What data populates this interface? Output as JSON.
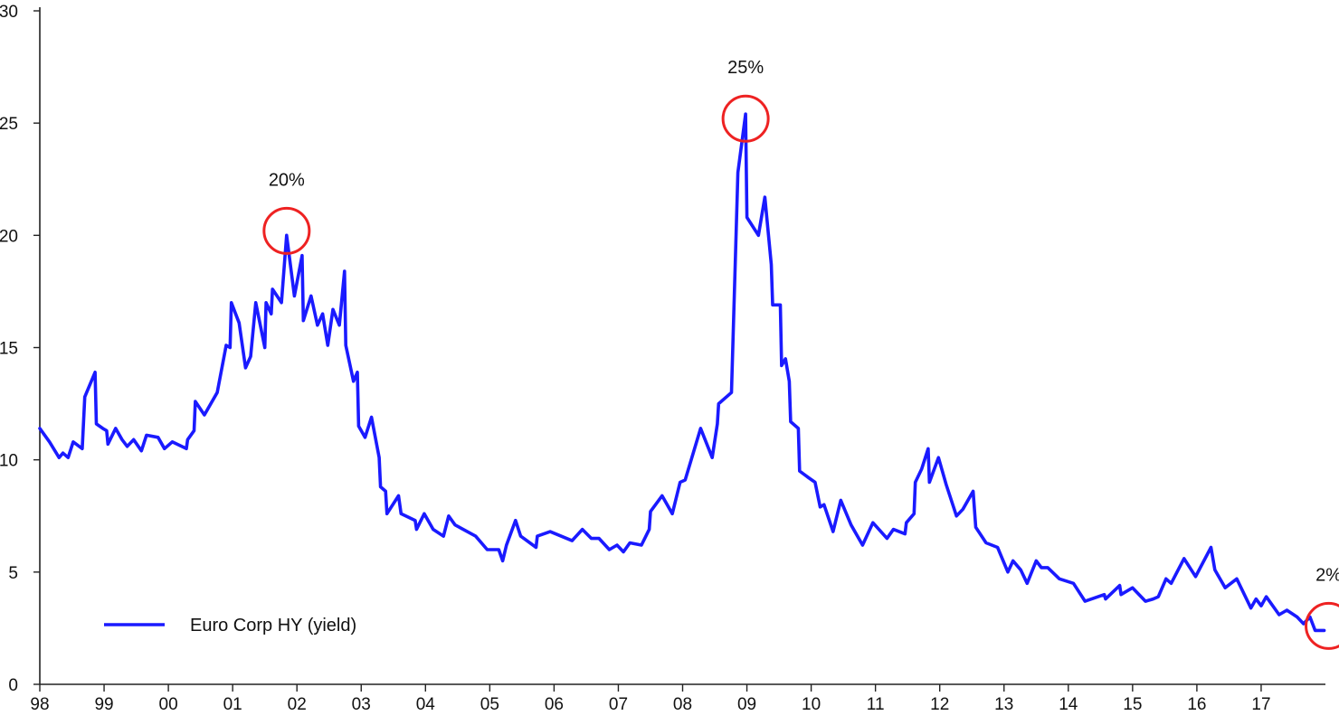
{
  "chart_data": {
    "type": "line",
    "title": "",
    "xlabel": "",
    "ylabel": "",
    "ylim": [
      0,
      30
    ],
    "y_ticks": [
      0,
      5,
      10,
      15,
      20,
      25,
      30
    ],
    "x_range": [
      1998,
      2018
    ],
    "x_ticks": [
      {
        "value": 1998,
        "label": "98"
      },
      {
        "value": 1999,
        "label": "99"
      },
      {
        "value": 2000,
        "label": "00"
      },
      {
        "value": 2001,
        "label": "01"
      },
      {
        "value": 2002,
        "label": "02"
      },
      {
        "value": 2003,
        "label": "03"
      },
      {
        "value": 2004,
        "label": "04"
      },
      {
        "value": 2005,
        "label": "05"
      },
      {
        "value": 2006,
        "label": "06"
      },
      {
        "value": 2007,
        "label": "07"
      },
      {
        "value": 2008,
        "label": "08"
      },
      {
        "value": 2009,
        "label": "09"
      },
      {
        "value": 2010,
        "label": "10"
      },
      {
        "value": 2011,
        "label": "11"
      },
      {
        "value": 2012,
        "label": "12"
      },
      {
        "value": 2013,
        "label": "13"
      },
      {
        "value": 2014,
        "label": "14"
      },
      {
        "value": 2015,
        "label": "15"
      },
      {
        "value": 2016,
        "label": "16"
      },
      {
        "value": 2017,
        "label": "17"
      }
    ],
    "grid": false,
    "legend_placement": "bottom-left",
    "series": [
      {
        "name": "Euro Corp HY (yield)",
        "color": "#1a1aff",
        "points": [
          [
            1998.0,
            11.4
          ],
          [
            1998.15,
            10.8
          ],
          [
            1998.3,
            10.1
          ],
          [
            1998.36,
            10.3
          ],
          [
            1998.44,
            10.1
          ],
          [
            1998.52,
            10.8
          ],
          [
            1998.66,
            10.5
          ],
          [
            1998.7,
            12.8
          ],
          [
            1998.86,
            13.9
          ],
          [
            1998.88,
            11.6
          ],
          [
            1998.98,
            11.4
          ],
          [
            1999.04,
            11.3
          ],
          [
            1999.06,
            10.7
          ],
          [
            1999.18,
            11.4
          ],
          [
            1999.28,
            10.9
          ],
          [
            1999.36,
            10.6
          ],
          [
            1999.46,
            10.9
          ],
          [
            1999.58,
            10.4
          ],
          [
            1999.66,
            11.1
          ],
          [
            1999.84,
            11.0
          ],
          [
            1999.94,
            10.5
          ],
          [
            2000.06,
            10.8
          ],
          [
            2000.28,
            10.5
          ],
          [
            2000.3,
            10.9
          ],
          [
            2000.4,
            11.3
          ],
          [
            2000.42,
            12.6
          ],
          [
            2000.56,
            12.0
          ],
          [
            2000.76,
            13.0
          ],
          [
            2000.9,
            15.1
          ],
          [
            2000.96,
            15.0
          ],
          [
            2000.98,
            17.0
          ],
          [
            2001.1,
            16.1
          ],
          [
            2001.2,
            14.1
          ],
          [
            2001.28,
            14.6
          ],
          [
            2001.36,
            17.0
          ],
          [
            2001.5,
            15.0
          ],
          [
            2001.52,
            17.0
          ],
          [
            2001.6,
            16.5
          ],
          [
            2001.62,
            17.6
          ],
          [
            2001.76,
            17.0
          ],
          [
            2001.84,
            20.0
          ],
          [
            2001.96,
            17.3
          ],
          [
            2002.08,
            19.1
          ],
          [
            2002.1,
            16.2
          ],
          [
            2002.22,
            17.3
          ],
          [
            2002.32,
            16.0
          ],
          [
            2002.4,
            16.5
          ],
          [
            2002.48,
            15.1
          ],
          [
            2002.56,
            16.7
          ],
          [
            2002.66,
            16.0
          ],
          [
            2002.74,
            18.4
          ],
          [
            2002.76,
            15.1
          ],
          [
            2002.88,
            13.5
          ],
          [
            2002.94,
            13.9
          ],
          [
            2002.96,
            11.5
          ],
          [
            2003.06,
            11.0
          ],
          [
            2003.16,
            11.9
          ],
          [
            2003.28,
            10.1
          ],
          [
            2003.3,
            8.8
          ],
          [
            2003.38,
            8.6
          ],
          [
            2003.4,
            7.6
          ],
          [
            2003.58,
            8.4
          ],
          [
            2003.62,
            7.6
          ],
          [
            2003.84,
            7.3
          ],
          [
            2003.86,
            6.9
          ],
          [
            2003.98,
            7.6
          ],
          [
            2004.12,
            6.9
          ],
          [
            2004.28,
            6.6
          ],
          [
            2004.36,
            7.5
          ],
          [
            2004.46,
            7.1
          ],
          [
            2004.78,
            6.6
          ],
          [
            2004.96,
            6.0
          ],
          [
            2005.14,
            6.0
          ],
          [
            2005.2,
            5.5
          ],
          [
            2005.26,
            6.2
          ],
          [
            2005.4,
            7.3
          ],
          [
            2005.48,
            6.6
          ],
          [
            2005.72,
            6.1
          ],
          [
            2005.74,
            6.6
          ],
          [
            2005.94,
            6.8
          ],
          [
            2006.28,
            6.4
          ],
          [
            2006.44,
            6.9
          ],
          [
            2006.58,
            6.5
          ],
          [
            2006.7,
            6.5
          ],
          [
            2006.86,
            6.0
          ],
          [
            2006.98,
            6.2
          ],
          [
            2007.08,
            5.9
          ],
          [
            2007.18,
            6.3
          ],
          [
            2007.36,
            6.2
          ],
          [
            2007.48,
            6.9
          ],
          [
            2007.5,
            7.7
          ],
          [
            2007.68,
            8.4
          ],
          [
            2007.84,
            7.6
          ],
          [
            2007.96,
            9.0
          ],
          [
            2008.04,
            9.1
          ],
          [
            2008.28,
            11.4
          ],
          [
            2008.46,
            10.1
          ],
          [
            2008.54,
            11.6
          ],
          [
            2008.56,
            12.5
          ],
          [
            2008.76,
            13.0
          ],
          [
            2008.86,
            22.8
          ],
          [
            2008.98,
            25.4
          ],
          [
            2009.0,
            20.8
          ],
          [
            2009.18,
            20.0
          ],
          [
            2009.28,
            21.7
          ],
          [
            2009.38,
            18.7
          ],
          [
            2009.4,
            16.9
          ],
          [
            2009.52,
            16.9
          ],
          [
            2009.54,
            14.2
          ],
          [
            2009.6,
            14.5
          ],
          [
            2009.66,
            13.5
          ],
          [
            2009.68,
            11.7
          ],
          [
            2009.8,
            11.4
          ],
          [
            2009.82,
            9.5
          ],
          [
            2009.96,
            9.2
          ],
          [
            2010.06,
            9.0
          ],
          [
            2010.14,
            7.9
          ],
          [
            2010.2,
            8.0
          ],
          [
            2010.34,
            6.8
          ],
          [
            2010.46,
            8.2
          ],
          [
            2010.62,
            7.1
          ],
          [
            2010.8,
            6.2
          ],
          [
            2010.96,
            7.2
          ],
          [
            2011.18,
            6.5
          ],
          [
            2011.28,
            6.9
          ],
          [
            2011.46,
            6.7
          ],
          [
            2011.48,
            7.2
          ],
          [
            2011.6,
            7.6
          ],
          [
            2011.62,
            9.0
          ],
          [
            2011.72,
            9.6
          ],
          [
            2011.82,
            10.5
          ],
          [
            2011.84,
            9.0
          ],
          [
            2011.98,
            10.1
          ],
          [
            2012.1,
            8.9
          ],
          [
            2012.26,
            7.5
          ],
          [
            2012.36,
            7.8
          ],
          [
            2012.52,
            8.6
          ],
          [
            2012.56,
            7.0
          ],
          [
            2012.72,
            6.3
          ],
          [
            2012.9,
            6.1
          ],
          [
            2013.06,
            5.0
          ],
          [
            2013.14,
            5.5
          ],
          [
            2013.26,
            5.1
          ],
          [
            2013.36,
            4.5
          ],
          [
            2013.5,
            5.5
          ],
          [
            2013.58,
            5.2
          ],
          [
            2013.68,
            5.2
          ],
          [
            2013.86,
            4.7
          ],
          [
            2014.08,
            4.5
          ],
          [
            2014.26,
            3.7
          ],
          [
            2014.56,
            4.0
          ],
          [
            2014.58,
            3.8
          ],
          [
            2014.8,
            4.4
          ],
          [
            2014.82,
            4.0
          ],
          [
            2015.0,
            4.3
          ],
          [
            2015.2,
            3.7
          ],
          [
            2015.32,
            3.8
          ],
          [
            2015.4,
            3.9
          ],
          [
            2015.52,
            4.7
          ],
          [
            2015.6,
            4.5
          ],
          [
            2015.8,
            5.6
          ],
          [
            2015.98,
            4.8
          ],
          [
            2016.22,
            6.1
          ],
          [
            2016.28,
            5.1
          ],
          [
            2016.44,
            4.3
          ],
          [
            2016.62,
            4.7
          ],
          [
            2016.84,
            3.4
          ],
          [
            2016.92,
            3.8
          ],
          [
            2017.0,
            3.5
          ],
          [
            2017.08,
            3.9
          ],
          [
            2017.28,
            3.1
          ],
          [
            2017.4,
            3.3
          ],
          [
            2017.56,
            3.0
          ],
          [
            2017.66,
            2.7
          ],
          [
            2017.76,
            3.0
          ],
          [
            2017.84,
            2.4
          ],
          [
            2017.98,
            2.4
          ]
        ]
      }
    ],
    "annotations": [
      {
        "label": "20%",
        "x": 2001.84,
        "y": 20.2
      },
      {
        "label": "25%",
        "x": 2008.98,
        "y": 25.2
      },
      {
        "label": "2%",
        "x": 2018.05,
        "y": 2.6
      }
    ]
  }
}
